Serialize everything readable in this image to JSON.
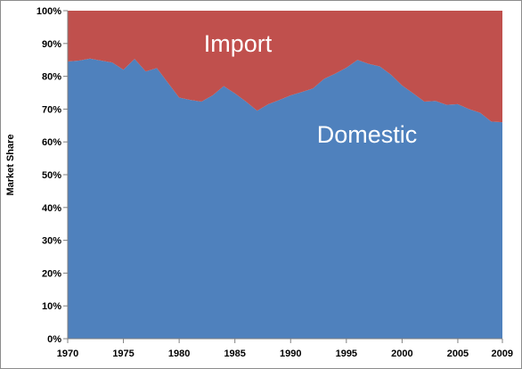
{
  "chart_data": {
    "type": "area",
    "stacked": true,
    "ylabel": "Market Share",
    "xlim": [
      1970,
      2009
    ],
    "ylim": [
      0,
      100
    ],
    "y_ticks": [
      "0%",
      "10%",
      "20%",
      "30%",
      "40%",
      "50%",
      "60%",
      "70%",
      "80%",
      "90%",
      "100%"
    ],
    "y_tick_values": [
      0,
      10,
      20,
      30,
      40,
      50,
      60,
      70,
      80,
      90,
      100
    ],
    "x_ticks": [
      "1970",
      "1975",
      "1980",
      "1985",
      "1990",
      "1995",
      "2000",
      "2005",
      "2009"
    ],
    "x_tick_values": [
      1970,
      1975,
      1980,
      1985,
      1990,
      1995,
      2000,
      2005,
      2009
    ],
    "x": [
      1970,
      1971,
      1972,
      1973,
      1974,
      1975,
      1976,
      1977,
      1978,
      1979,
      1980,
      1981,
      1982,
      1983,
      1984,
      1985,
      1986,
      1987,
      1988,
      1989,
      1990,
      1991,
      1992,
      1993,
      1994,
      1995,
      1996,
      1997,
      1998,
      1999,
      2000,
      2001,
      2002,
      2003,
      2004,
      2005,
      2006,
      2007,
      2008,
      2009
    ],
    "series": [
      {
        "name": "Domestic",
        "color": "#4f81bd",
        "values": [
          84.5,
          84.8,
          85.4,
          84.8,
          84.2,
          82.0,
          85.3,
          81.5,
          82.5,
          78.0,
          73.5,
          72.8,
          72.3,
          74.2,
          77.0,
          74.8,
          72.3,
          69.5,
          71.5,
          72.8,
          74.2,
          75.2,
          76.3,
          79.2,
          80.8,
          82.6,
          85.0,
          83.8,
          83.0,
          80.5,
          77.2,
          74.8,
          72.3,
          72.5,
          71.3,
          71.5,
          70.0,
          68.9,
          66.2,
          66.0
        ]
      },
      {
        "name": "Import",
        "color": "#c0504d",
        "values": [
          15.5,
          15.2,
          14.6,
          15.2,
          15.8,
          18.0,
          14.7,
          18.5,
          17.5,
          22.0,
          26.5,
          27.2,
          27.7,
          25.8,
          23.0,
          25.2,
          27.7,
          30.5,
          28.5,
          27.2,
          25.8,
          24.8,
          23.7,
          20.8,
          19.2,
          17.4,
          15.0,
          16.2,
          17.0,
          19.5,
          22.8,
          25.2,
          27.7,
          27.5,
          28.7,
          28.5,
          30.0,
          31.1,
          33.8,
          34.0
        ]
      }
    ],
    "annotations": [
      {
        "text": "Import",
        "series": "Import"
      },
      {
        "text": "Domestic",
        "series": "Domestic"
      }
    ]
  }
}
